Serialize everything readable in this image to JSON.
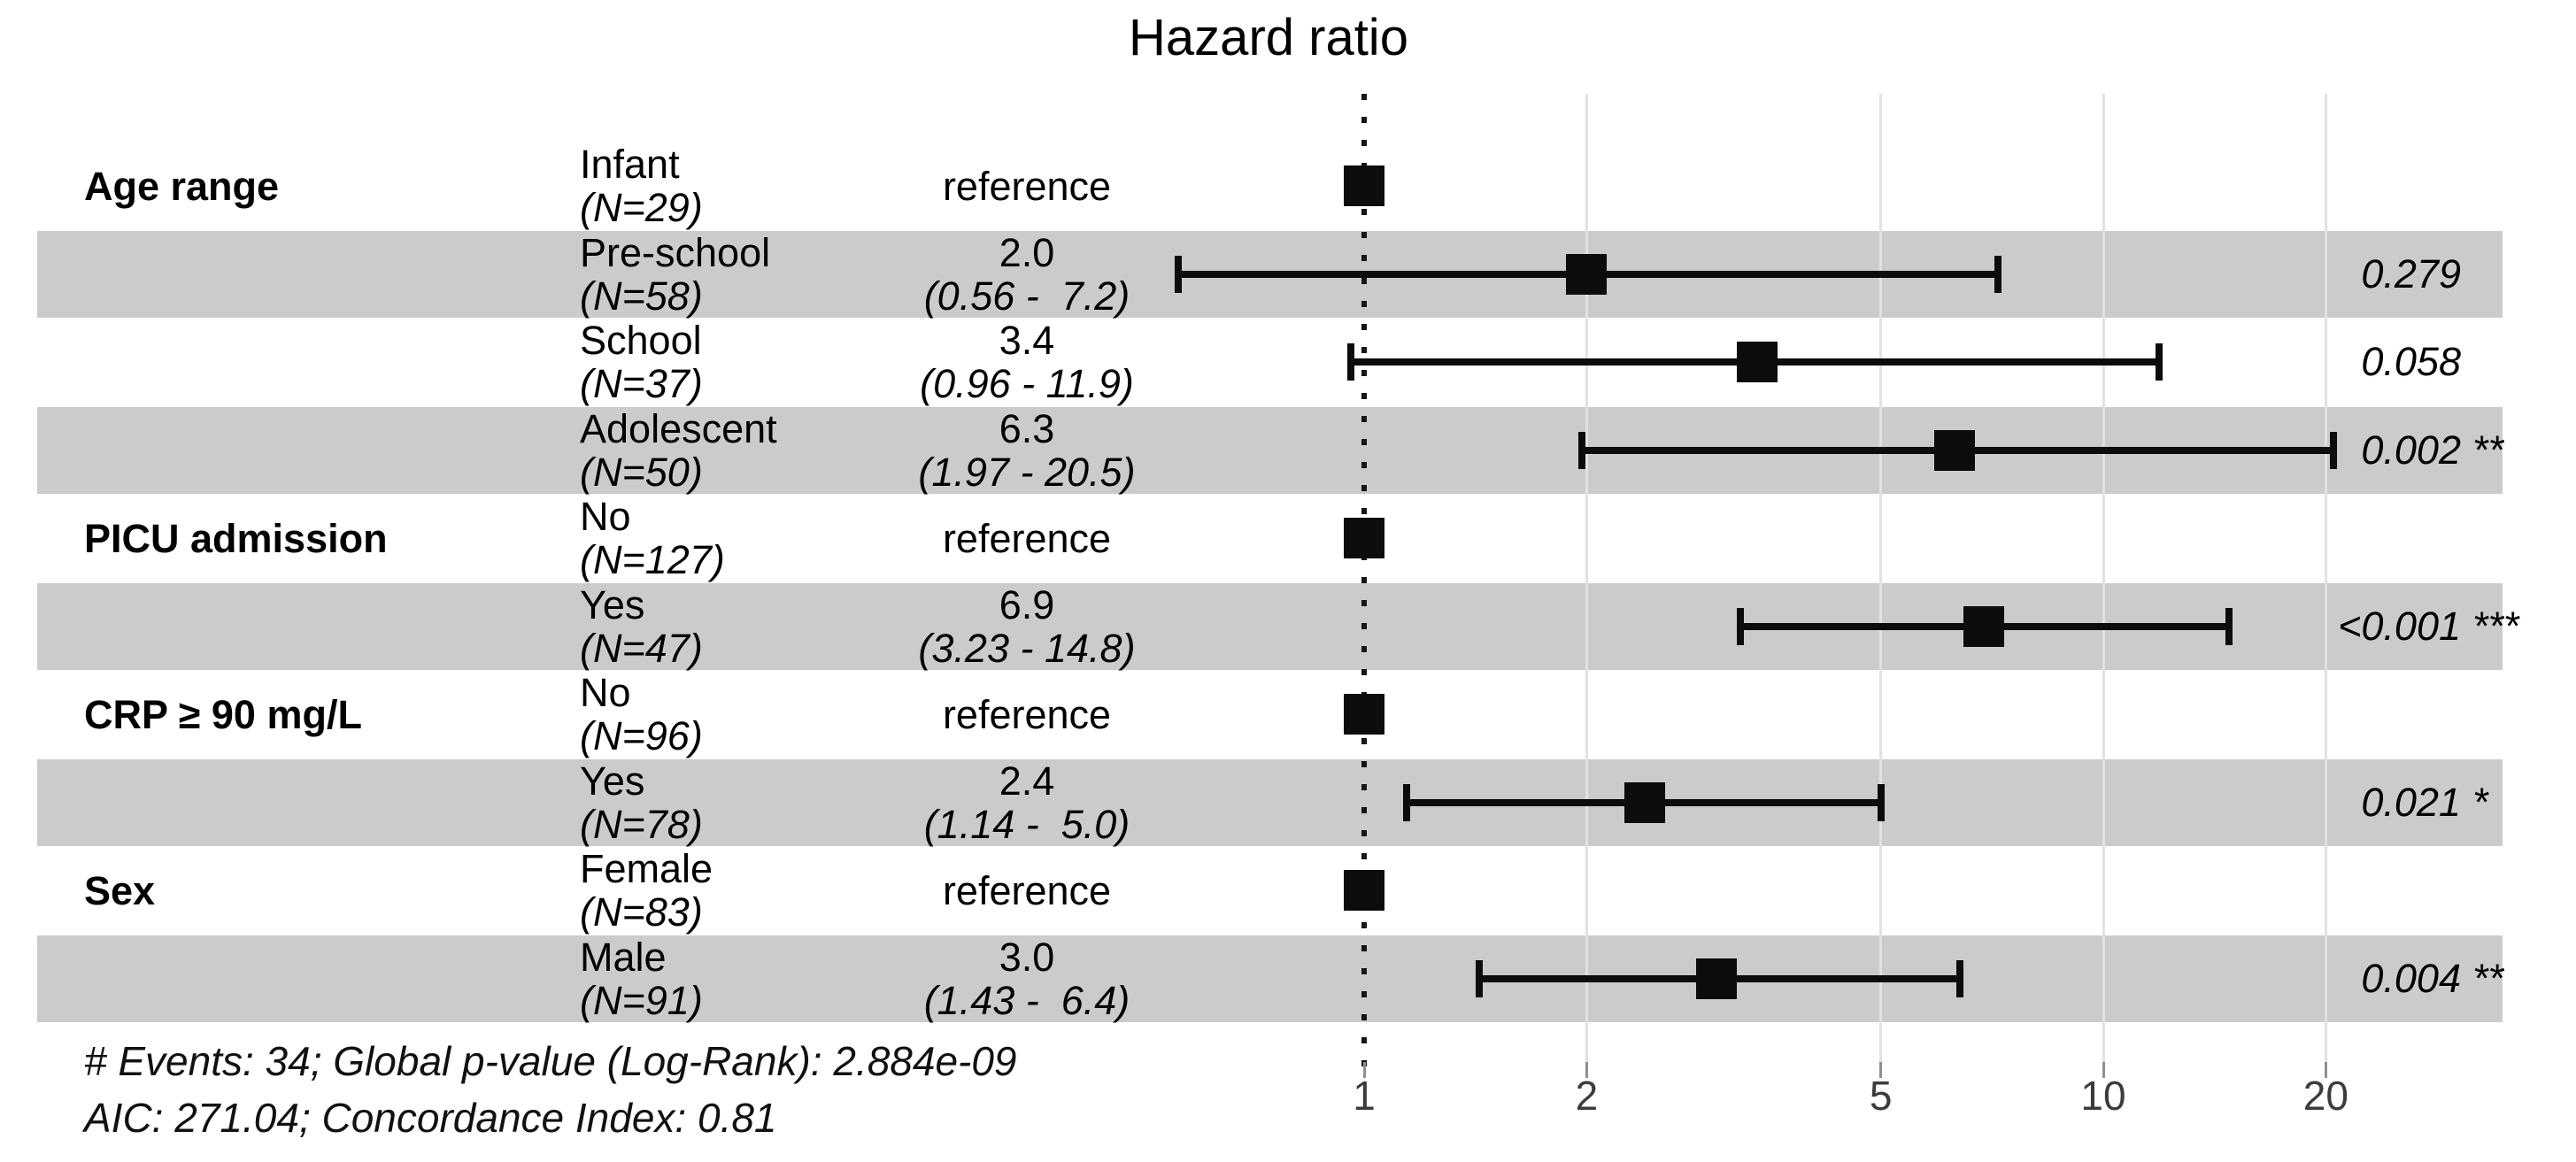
{
  "title": "Hazard ratio",
  "annotations": {
    "line1": "# Events: 34; Global p-value (Log-Rank): 2.884e-09",
    "line2": "AIC: 271.04; Concordance Index: 0.81"
  },
  "colors": {
    "band": "#cbcbcb",
    "gridline": "#e2e2e2",
    "marker": "#0c0c0c",
    "tick_mark": "#8f8f8f",
    "axis_label": "#3c3c3c"
  },
  "chart_data": {
    "type": "scatter",
    "variant": "forest-plot",
    "title": "Hazard ratio",
    "x_scale": "log10",
    "x_ticks": [
      1,
      2,
      5,
      10,
      20
    ],
    "x_range": [
      0.45,
      27
    ],
    "reference_line": 1,
    "grid": "vertical-only",
    "rows": [
      {
        "group": "Age range",
        "level": "Infant",
        "n_label": "(N=29)",
        "estimate_label": "reference",
        "hr": 1.0,
        "reference": true,
        "shaded": false,
        "p_value": "",
        "stars": ""
      },
      {
        "group": "",
        "level": "Pre-school",
        "n_label": "(N=58)",
        "estimate_label": "2.0",
        "ci_label": "(0.56 -  7.2)",
        "hr": 2.0,
        "ci_low": 0.56,
        "ci_high": 7.2,
        "reference": false,
        "shaded": true,
        "p_value": "0.279",
        "stars": ""
      },
      {
        "group": "",
        "level": "School",
        "n_label": "(N=37)",
        "estimate_label": "3.4",
        "ci_label": "(0.96 - 11.9)",
        "hr": 3.4,
        "ci_low": 0.96,
        "ci_high": 11.9,
        "reference": false,
        "shaded": false,
        "p_value": "0.058",
        "stars": ""
      },
      {
        "group": "",
        "level": "Adolescent",
        "n_label": "(N=50)",
        "estimate_label": "6.3",
        "ci_label": "(1.97 - 20.5)",
        "hr": 6.3,
        "ci_low": 1.97,
        "ci_high": 20.5,
        "reference": false,
        "shaded": true,
        "p_value": "0.002",
        "stars": "**"
      },
      {
        "group": "PICU admission",
        "level": "No",
        "n_label": "(N=127)",
        "estimate_label": "reference",
        "hr": 1.0,
        "reference": true,
        "shaded": false,
        "p_value": "",
        "stars": ""
      },
      {
        "group": "",
        "level": "Yes",
        "n_label": "(N=47)",
        "estimate_label": "6.9",
        "ci_label": "(3.23 - 14.8)",
        "hr": 6.9,
        "ci_low": 3.23,
        "ci_high": 14.8,
        "reference": false,
        "shaded": true,
        "p_value": "<0.001",
        "stars": "***"
      },
      {
        "group": "CRP ≥ 90 mg/L",
        "level": "No",
        "n_label": "(N=96)",
        "estimate_label": "reference",
        "hr": 1.0,
        "reference": true,
        "shaded": false,
        "p_value": "",
        "stars": ""
      },
      {
        "group": "",
        "level": "Yes",
        "n_label": "(N=78)",
        "estimate_label": "2.4",
        "ci_label": "(1.14 -  5.0)",
        "hr": 2.4,
        "ci_low": 1.14,
        "ci_high": 5.0,
        "reference": false,
        "shaded": true,
        "p_value": "0.021",
        "stars": "*"
      },
      {
        "group": "Sex",
        "level": "Female",
        "n_label": "(N=83)",
        "estimate_label": "reference",
        "hr": 1.0,
        "reference": true,
        "shaded": false,
        "p_value": "",
        "stars": ""
      },
      {
        "group": "",
        "level": "Male",
        "n_label": "(N=91)",
        "estimate_label": "3.0",
        "ci_label": "(1.43 -  6.4)",
        "hr": 3.0,
        "ci_low": 1.43,
        "ci_high": 6.4,
        "reference": false,
        "shaded": true,
        "p_value": "0.004",
        "stars": "**"
      }
    ]
  }
}
